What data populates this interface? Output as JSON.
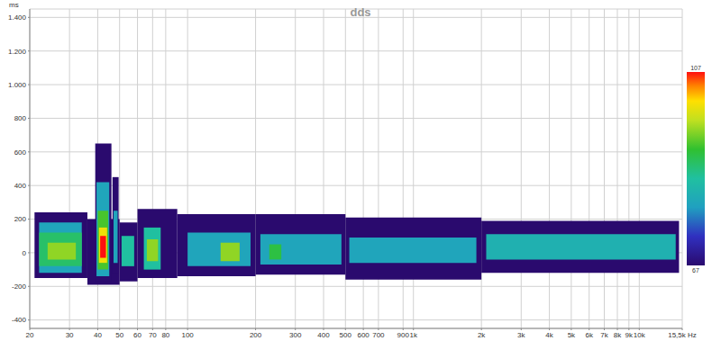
{
  "chart_data": {
    "type": "heatmap",
    "title": "dds",
    "y_label": "ms",
    "log": "x",
    "grid": true,
    "xlim": [
      20,
      15500
    ],
    "xticks": [
      20,
      30,
      40,
      50,
      60,
      70,
      80,
      100,
      200,
      300,
      400,
      500,
      600,
      700,
      900,
      {
        "value": 1000,
        "label": "1k"
      },
      {
        "value": 2000,
        "label": "2k"
      },
      {
        "value": 3000,
        "label": "3k"
      },
      {
        "value": 4000,
        "label": "4k"
      },
      {
        "value": 5000,
        "label": "5k"
      },
      {
        "value": 6000,
        "label": "6k"
      },
      {
        "value": 7000,
        "label": "7k"
      },
      {
        "value": 8000,
        "label": "8k"
      },
      {
        "value": 9000,
        "label": "9k"
      },
      {
        "value": 10000,
        "label": "10k"
      },
      {
        "value": 15500,
        "label": "15,5k Hz"
      }
    ],
    "ylim": [
      -450,
      1450
    ],
    "yticks": [
      -400,
      -200,
      0,
      200,
      400,
      600,
      800,
      {
        "value": 1000,
        "label": "1.000"
      },
      {
        "value": 1200,
        "label": "1.200"
      },
      {
        "value": 1400,
        "label": "1.400"
      }
    ],
    "colorbar": {
      "range": [
        67,
        107
      ],
      "ticks": [
        67,
        107
      ]
    },
    "cells": [
      {
        "x0": 21,
        "x1": 36,
        "y0": -150,
        "y1": 240,
        "value": 67
      },
      {
        "x0": 22,
        "x1": 34,
        "y0": -120,
        "y1": 180,
        "value": 80
      },
      {
        "x0": 22,
        "x1": 34,
        "y0": -80,
        "y1": 120,
        "value": 88
      },
      {
        "x0": 24,
        "x1": 32,
        "y0": -40,
        "y1": 60,
        "value": 95
      },
      {
        "x0": 36,
        "x1": 50,
        "y0": -190,
        "y1": 200,
        "value": 67
      },
      {
        "x0": 39,
        "x1": 46,
        "y0": -170,
        "y1": 650,
        "value": 67
      },
      {
        "x0": 39.5,
        "x1": 45,
        "y0": -140,
        "y1": 420,
        "value": 80
      },
      {
        "x0": 40,
        "x1": 44.5,
        "y0": -100,
        "y1": 250,
        "value": 92
      },
      {
        "x0": 40.5,
        "x1": 44,
        "y0": -60,
        "y1": 150,
        "value": 100
      },
      {
        "x0": 41,
        "x1": 43.5,
        "y0": -30,
        "y1": 100,
        "value": 107
      },
      {
        "x0": 46.5,
        "x1": 49.5,
        "y0": -120,
        "y1": 450,
        "value": 67
      },
      {
        "x0": 47,
        "x1": 49,
        "y0": -60,
        "y1": 250,
        "value": 80
      },
      {
        "x0": 50,
        "x1": 60,
        "y0": -170,
        "y1": 180,
        "value": 67
      },
      {
        "x0": 51,
        "x1": 58,
        "y0": -80,
        "y1": 100,
        "value": 85
      },
      {
        "x0": 60,
        "x1": 90,
        "y0": -150,
        "y1": 260,
        "value": 67
      },
      {
        "x0": 64,
        "x1": 76,
        "y0": -100,
        "y1": 150,
        "value": 85
      },
      {
        "x0": 66,
        "x1": 74,
        "y0": -50,
        "y1": 80,
        "value": 95
      },
      {
        "x0": 90,
        "x1": 200,
        "y0": -140,
        "y1": 230,
        "value": 67
      },
      {
        "x0": 100,
        "x1": 190,
        "y0": -80,
        "y1": 120,
        "value": 80
      },
      {
        "x0": 140,
        "x1": 170,
        "y0": -50,
        "y1": 60,
        "value": 95
      },
      {
        "x0": 200,
        "x1": 500,
        "y0": -130,
        "y1": 230,
        "value": 67
      },
      {
        "x0": 210,
        "x1": 480,
        "y0": -70,
        "y1": 110,
        "value": 80
      },
      {
        "x0": 230,
        "x1": 260,
        "y0": -40,
        "y1": 50,
        "value": 90
      },
      {
        "x0": 500,
        "x1": 2000,
        "y0": -160,
        "y1": 210,
        "value": 67
      },
      {
        "x0": 520,
        "x1": 1900,
        "y0": -60,
        "y1": 90,
        "value": 80
      },
      {
        "x0": 2000,
        "x1": 15000,
        "y0": -120,
        "y1": 190,
        "value": 67
      },
      {
        "x0": 2100,
        "x1": 14500,
        "y0": -40,
        "y1": 110,
        "value": 82
      }
    ]
  }
}
